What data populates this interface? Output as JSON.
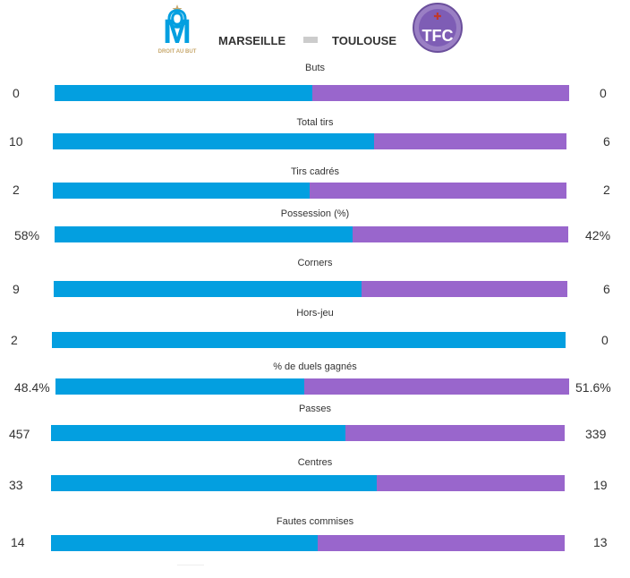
{
  "match": {
    "home_team": "MARSEILLE",
    "away_team": "TOULOUSE",
    "home_color": "#039fe0",
    "away_color": "#9966cc",
    "home_logo_text": "DROIT AU BUT",
    "away_logo_text": "TFC"
  },
  "stats": [
    {
      "label": "Buts",
      "home": "0",
      "away": "0",
      "home_share": 0.5
    },
    {
      "label": "Total tirs",
      "home": "10",
      "away": "6",
      "home_share": 0.625
    },
    {
      "label": "Tirs cadrés",
      "home": "2",
      "away": "2",
      "home_share": 0.5
    },
    {
      "label": "Possession (%)",
      "home": "58%",
      "away": "42%",
      "home_share": 0.58
    },
    {
      "label": "Corners",
      "home": "9",
      "away": "6",
      "home_share": 0.6
    },
    {
      "label": "Hors-jeu",
      "home": "2",
      "away": "0",
      "home_share": 1.0
    },
    {
      "label": "% de duels gagnés",
      "home": "48.4%",
      "away": "51.6%",
      "home_share": 0.484
    },
    {
      "label": "Passes",
      "home": "457",
      "away": "339",
      "home_share": 0.574
    },
    {
      "label": "Centres",
      "home": "33",
      "away": "19",
      "home_share": 0.635
    },
    {
      "label": "Fautes commises",
      "home": "14",
      "away": "13",
      "home_share": 0.519
    }
  ]
}
